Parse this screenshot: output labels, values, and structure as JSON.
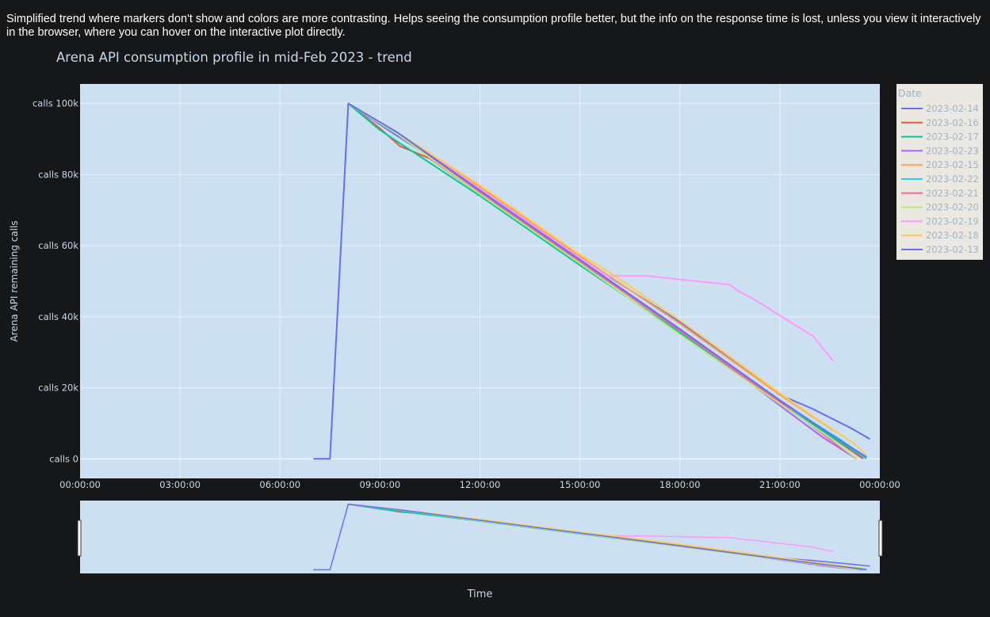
{
  "description": "Simplified trend where markers don't show and colors are more contrasting. Helps seeing the consumption profile better, but the info on the response time is lost, unless you view it interactively in the browser, where you can hover on the interactive plot directly.",
  "colors": {
    "page_bg": "#151719",
    "plot_bg": "#cde0f1",
    "grid": "#eaf2fa",
    "legend_bg": "#ebe8e2",
    "axis_text": "#c6d9ea"
  },
  "chart_data": {
    "type": "line",
    "title": "Arena API consumption profile in mid-Feb 2023 - trend",
    "xlabel": "Time",
    "ylabel": "Arena API remaining calls",
    "x_unit": "hours of day",
    "xlim": [
      0,
      24
    ],
    "ylim": [
      -5500,
      105500
    ],
    "xticks": [
      0,
      3,
      6,
      9,
      12,
      15,
      18,
      21,
      24
    ],
    "xtick_labels": [
      "00:00:00",
      "03:00:00",
      "06:00:00",
      "09:00:00",
      "12:00:00",
      "15:00:00",
      "18:00:00",
      "21:00:00",
      "00:00:00"
    ],
    "yticks": [
      0,
      20000,
      40000,
      60000,
      80000,
      100000
    ],
    "ytick_labels": [
      "calls 0",
      "calls 20k",
      "calls 40k",
      "calls 60k",
      "calls 80k",
      "calls 100k"
    ],
    "grid": true,
    "legend_title": "Date",
    "legend_position": "right",
    "range_slider": true,
    "series": [
      {
        "name": "2023-02-14",
        "color": "#636efa",
        "points": [
          [
            8.05,
            100000
          ],
          [
            9.5,
            91000
          ],
          [
            12,
            76000
          ],
          [
            15,
            57000
          ],
          [
            16,
            50500
          ],
          [
            18,
            38500
          ],
          [
            21,
            18000
          ],
          [
            22,
            14000
          ],
          [
            23.1,
            8800
          ],
          [
            23.7,
            5600
          ]
        ]
      },
      {
        "name": "2023-02-16",
        "color": "#ef553b",
        "points": [
          [
            8.05,
            100000
          ],
          [
            9,
            93000
          ],
          [
            9.6,
            88000
          ],
          [
            10.5,
            84500
          ],
          [
            12,
            74500
          ],
          [
            15,
            55500
          ],
          [
            18,
            36500
          ],
          [
            21,
            16000
          ],
          [
            22.5,
            6500
          ],
          [
            23.5,
            0
          ]
        ]
      },
      {
        "name": "2023-02-17",
        "color": "#00cc96",
        "points": [
          [
            8.05,
            100000
          ],
          [
            9,
            92500
          ],
          [
            12,
            74000
          ],
          [
            15,
            54500
          ],
          [
            18,
            35500
          ],
          [
            21,
            16000
          ],
          [
            22.5,
            6500
          ],
          [
            23.6,
            0
          ]
        ]
      },
      {
        "name": "2023-02-23",
        "color": "#ab63fa",
        "points": [
          [
            8.05,
            100000
          ],
          [
            9.5,
            91500
          ],
          [
            12,
            75500
          ],
          [
            15,
            56000
          ],
          [
            18,
            36500
          ],
          [
            21,
            15000
          ],
          [
            22.3,
            6000
          ],
          [
            23.3,
            0
          ]
        ]
      },
      {
        "name": "2023-02-15",
        "color": "#ffa15a",
        "points": [
          [
            8.05,
            100000
          ],
          [
            9.5,
            92000
          ],
          [
            12,
            76500
          ],
          [
            15,
            57000
          ],
          [
            18,
            38000
          ],
          [
            21,
            18000
          ],
          [
            22.6,
            8000
          ]
        ]
      },
      {
        "name": "2023-02-22",
        "color": "#19d3f3",
        "points": [
          [
            8.05,
            100000
          ],
          [
            9.5,
            91500
          ],
          [
            12,
            75500
          ],
          [
            15,
            55500
          ],
          [
            18,
            36000
          ],
          [
            21,
            16000
          ],
          [
            22.8,
            5500
          ],
          [
            23.6,
            0
          ]
        ]
      },
      {
        "name": "2023-02-21",
        "color": "#ff6692",
        "points": [
          [
            8.05,
            100000
          ],
          [
            9.5,
            91500
          ],
          [
            12,
            75000
          ],
          [
            15,
            55500
          ],
          [
            18,
            36000
          ],
          [
            21,
            16000
          ],
          [
            22.5,
            5500
          ],
          [
            23.3,
            0
          ]
        ]
      },
      {
        "name": "2023-02-20",
        "color": "#b6e880",
        "points": [
          [
            8.05,
            100000
          ],
          [
            9.5,
            91500
          ],
          [
            12,
            74500
          ],
          [
            15,
            55000
          ],
          [
            18,
            35000
          ],
          [
            21,
            15500
          ],
          [
            22.5,
            6000
          ],
          [
            23.3,
            0
          ]
        ]
      },
      {
        "name": "2023-02-19",
        "color": "#ff97ff",
        "points": [
          [
            8.05,
            100000
          ],
          [
            9.5,
            92000
          ],
          [
            12,
            76000
          ],
          [
            15,
            56500
          ],
          [
            15.8,
            51500
          ],
          [
            17,
            51500
          ],
          [
            19.5,
            49000
          ],
          [
            19.8,
            47000
          ],
          [
            20.3,
            44500
          ],
          [
            20.8,
            41500
          ],
          [
            21.4,
            38000
          ],
          [
            22,
            34500
          ],
          [
            22.6,
            27500
          ]
        ]
      },
      {
        "name": "2023-02-18",
        "color": "#fecb52",
        "points": [
          [
            8.05,
            100000
          ],
          [
            9.5,
            92000
          ],
          [
            12,
            77000
          ],
          [
            15,
            57500
          ],
          [
            15.8,
            53000
          ],
          [
            18,
            39000
          ],
          [
            21,
            18500
          ],
          [
            22.3,
            10000
          ],
          [
            23.2,
            4500
          ],
          [
            23.6,
            1000
          ]
        ]
      },
      {
        "name": "2023-02-13",
        "color": "#636efa",
        "points": [
          [
            7,
            0
          ],
          [
            7.5,
            0
          ],
          [
            8.05,
            100000
          ],
          [
            9.5,
            92000
          ],
          [
            12,
            75500
          ],
          [
            15,
            56000
          ],
          [
            18,
            36500
          ],
          [
            21,
            16500
          ],
          [
            22.5,
            7000
          ],
          [
            23.6,
            500
          ]
        ]
      }
    ]
  }
}
